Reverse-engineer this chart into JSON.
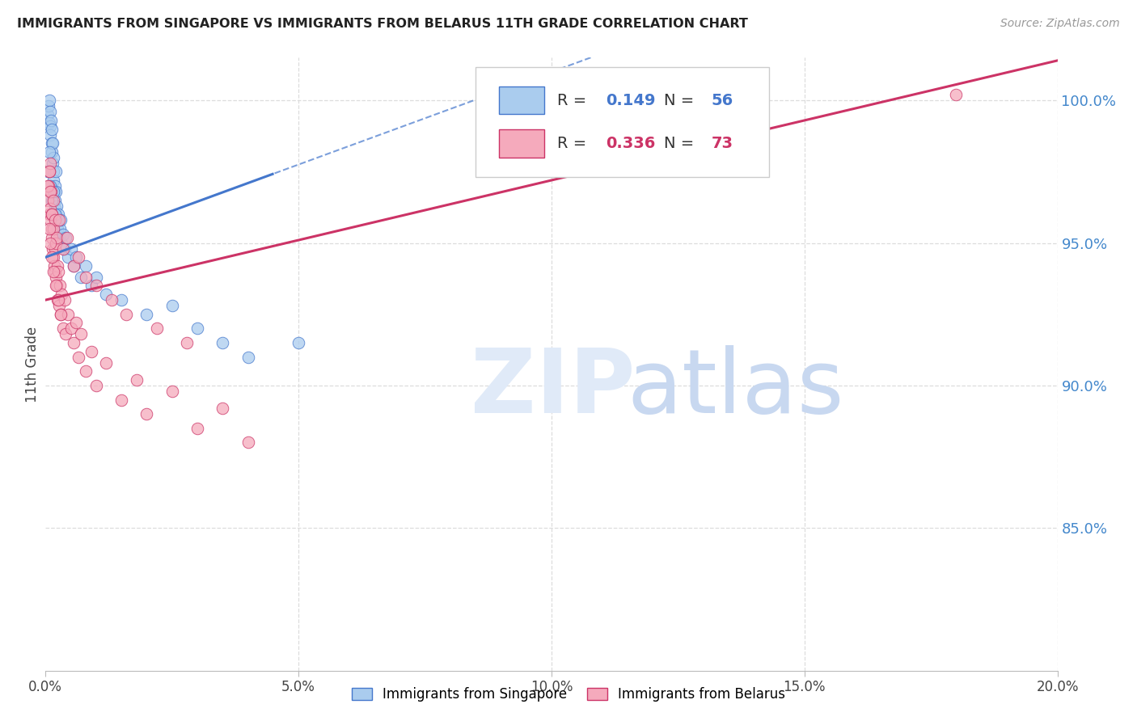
{
  "title": "IMMIGRANTS FROM SINGAPORE VS IMMIGRANTS FROM BELARUS 11TH GRADE CORRELATION CHART",
  "source": "Source: ZipAtlas.com",
  "ylabel": "11th Grade",
  "xlim": [
    0.0,
    20.0
  ],
  "ylim": [
    80.0,
    101.5
  ],
  "yticks_right": [
    85.0,
    90.0,
    95.0,
    100.0
  ],
  "xticks": [
    0.0,
    5.0,
    10.0,
    15.0,
    20.0
  ],
  "xtick_labels": [
    "0.0%",
    "5.0%",
    "10.0%",
    "15.0%",
    "20.0%"
  ],
  "legend_R_singapore": "0.149",
  "legend_N_singapore": "56",
  "legend_R_belarus": "0.336",
  "legend_N_belarus": "73",
  "color_singapore": "#aaccee",
  "color_singapore_line": "#4477cc",
  "color_belarus": "#f5aabc",
  "color_belarus_line": "#cc3366",
  "color_right_axis": "#4488cc",
  "grid_color": "#dddddd",
  "background_color": "#ffffff",
  "title_fontsize": 11.5,
  "right_axis_color": "#4488cc",
  "singapore_x": [
    0.05,
    0.06,
    0.07,
    0.08,
    0.09,
    0.1,
    0.1,
    0.11,
    0.12,
    0.12,
    0.13,
    0.14,
    0.14,
    0.15,
    0.15,
    0.16,
    0.17,
    0.18,
    0.18,
    0.19,
    0.2,
    0.2,
    0.21,
    0.22,
    0.23,
    0.24,
    0.25,
    0.26,
    0.28,
    0.3,
    0.32,
    0.35,
    0.38,
    0.4,
    0.45,
    0.5,
    0.55,
    0.6,
    0.7,
    0.8,
    0.9,
    1.0,
    1.2,
    1.5,
    2.0,
    2.5,
    3.0,
    3.5,
    4.0,
    5.0,
    0.05,
    0.07,
    0.09,
    0.12,
    0.15,
    0.18
  ],
  "singapore_y": [
    99.5,
    99.8,
    100.0,
    99.2,
    99.6,
    99.1,
    98.8,
    99.3,
    98.5,
    99.0,
    98.2,
    97.8,
    98.5,
    97.5,
    98.0,
    97.2,
    96.8,
    97.0,
    96.5,
    96.2,
    96.8,
    97.5,
    96.0,
    96.3,
    95.8,
    95.5,
    96.0,
    95.2,
    95.5,
    95.8,
    95.0,
    95.3,
    94.8,
    95.2,
    94.5,
    94.8,
    94.2,
    94.5,
    93.8,
    94.2,
    93.5,
    93.8,
    93.2,
    93.0,
    92.5,
    92.8,
    92.0,
    91.5,
    91.0,
    91.5,
    97.5,
    98.2,
    97.0,
    96.5,
    96.8,
    96.0
  ],
  "belarus_x": [
    0.05,
    0.06,
    0.07,
    0.08,
    0.09,
    0.1,
    0.1,
    0.11,
    0.12,
    0.12,
    0.13,
    0.14,
    0.15,
    0.16,
    0.17,
    0.18,
    0.19,
    0.2,
    0.21,
    0.22,
    0.23,
    0.24,
    0.25,
    0.26,
    0.28,
    0.3,
    0.32,
    0.35,
    0.38,
    0.4,
    0.45,
    0.5,
    0.55,
    0.6,
    0.65,
    0.7,
    0.8,
    0.9,
    1.0,
    1.2,
    1.5,
    1.8,
    2.0,
    2.5,
    3.0,
    3.5,
    4.0,
    0.05,
    0.07,
    0.09,
    0.12,
    0.15,
    0.18,
    0.22,
    0.27,
    0.35,
    0.42,
    0.55,
    0.65,
    0.8,
    1.0,
    1.3,
    1.6,
    2.2,
    2.8,
    0.08,
    0.1,
    0.13,
    0.16,
    0.2,
    0.25,
    0.3,
    18.0
  ],
  "belarus_y": [
    96.5,
    97.0,
    97.5,
    96.0,
    97.8,
    96.2,
    95.8,
    96.8,
    95.5,
    96.0,
    95.2,
    94.8,
    95.5,
    94.5,
    94.2,
    94.8,
    94.0,
    95.0,
    93.8,
    93.5,
    94.2,
    93.0,
    94.0,
    92.8,
    93.5,
    92.5,
    93.2,
    92.0,
    93.0,
    91.8,
    92.5,
    92.0,
    91.5,
    92.2,
    91.0,
    91.8,
    90.5,
    91.2,
    90.0,
    90.8,
    89.5,
    90.2,
    89.0,
    89.8,
    88.5,
    89.2,
    88.0,
    97.0,
    97.5,
    96.8,
    96.0,
    96.5,
    95.8,
    95.2,
    95.8,
    94.8,
    95.2,
    94.2,
    94.5,
    93.8,
    93.5,
    93.0,
    92.5,
    92.0,
    91.5,
    95.5,
    95.0,
    94.5,
    94.0,
    93.5,
    93.0,
    92.5,
    100.2
  ]
}
